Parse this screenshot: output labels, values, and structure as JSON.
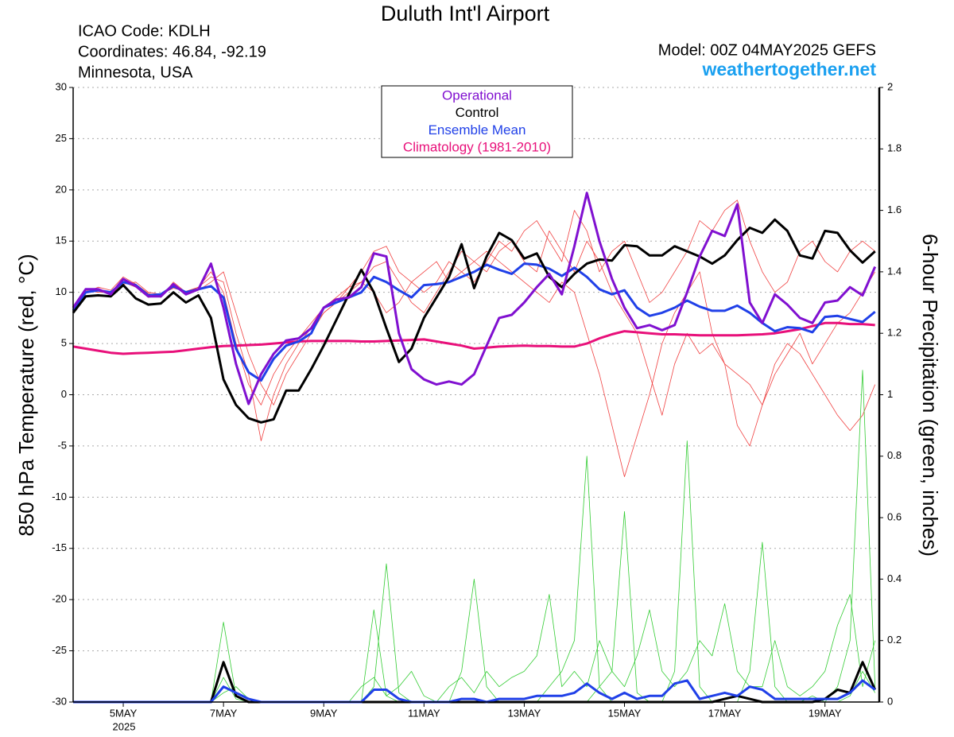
{
  "chart_data": {
    "type": "line",
    "title": "Duluth Int'l Airport",
    "info_left": [
      "ICAO Code: KDLH",
      "Coordinates: 46.84, -92.19",
      "Minnesota, USA"
    ],
    "model": "Model: 00Z 04MAY2025 GEFS",
    "site": "weathertogether.net",
    "ylabel": "850 hPa Temperature (red, °C)",
    "y2label": "6-hour Precipitation (green, inches)",
    "year_label": "2025",
    "x": [
      0,
      6,
      12,
      18,
      24,
      30,
      36,
      42,
      48,
      54,
      60,
      66,
      72,
      78,
      84,
      90,
      96,
      102,
      108,
      114,
      120,
      126,
      132,
      138,
      144,
      150,
      156,
      162,
      168,
      174,
      180,
      186,
      192,
      198,
      204,
      210,
      216,
      222,
      228,
      234,
      240,
      246,
      252,
      258,
      264,
      270,
      276,
      282,
      288,
      294,
      300,
      306,
      312,
      318,
      324,
      330,
      336,
      342,
      348,
      354,
      360,
      366,
      372,
      378,
      384
    ],
    "xlim": [
      0,
      386
    ],
    "xticks": [
      {
        "value": 24,
        "label": "5MAY"
      },
      {
        "value": 72,
        "label": "7MAY"
      },
      {
        "value": 120,
        "label": "9MAY"
      },
      {
        "value": 168,
        "label": "11MAY"
      },
      {
        "value": 216,
        "label": "13MAY"
      },
      {
        "value": 264,
        "label": "15MAY"
      },
      {
        "value": 312,
        "label": "17MAY"
      },
      {
        "value": 360,
        "label": "19MAY"
      }
    ],
    "ylim": [
      -30,
      30
    ],
    "yticks": [
      30,
      25,
      20,
      15,
      10,
      5,
      0,
      -5,
      -10,
      -15,
      -20,
      -25,
      -30
    ],
    "y2lim": [
      0,
      2
    ],
    "y2ticks": [
      0,
      0.2,
      0.4,
      0.6,
      0.8,
      1,
      1.2,
      1.4,
      1.6,
      1.8,
      2
    ],
    "grid": true,
    "series": [
      {
        "color": "#f04040",
        "values": [
          8,
          10,
          10.5,
          10.2,
          11.5,
          10.8,
          9.9,
          9.5,
          11,
          10,
          10.5,
          12,
          10,
          5,
          1,
          -1,
          2,
          4,
          5.5,
          7,
          8.5,
          9.5,
          10.5,
          11,
          12.5,
          13,
          11,
          9,
          8,
          10,
          12,
          14,
          13,
          12,
          14,
          15,
          13,
          12,
          16,
          14,
          12,
          15,
          13,
          10,
          8,
          6,
          2,
          -2,
          3,
          6,
          4,
          5,
          3,
          2,
          1,
          -1,
          3,
          5,
          4,
          2,
          0,
          -2,
          -3.5,
          -2,
          1
        ]
      },
      {
        "color": "#f04040",
        "values": [
          8,
          10.2,
          10,
          10,
          11,
          10.5,
          9.5,
          9.7,
          10.5,
          10,
          10.2,
          11,
          12,
          8,
          4,
          1,
          -1,
          2,
          4,
          6,
          8,
          9,
          10.5,
          12,
          14,
          14.5,
          12,
          11,
          10,
          11,
          13,
          12,
          11,
          13,
          15,
          14,
          16,
          17,
          15,
          13,
          18,
          16,
          12,
          14,
          15,
          12,
          9,
          10,
          12,
          14,
          17,
          16,
          18,
          19,
          15,
          12,
          10,
          11,
          14,
          15,
          13,
          12,
          14,
          15,
          14
        ]
      },
      {
        "color": "#f04040",
        "values": [
          8,
          10,
          10.3,
          9.8,
          10.8,
          11,
          10,
          9.8,
          10.4,
          10.1,
          10.5,
          11.5,
          11,
          6,
          2,
          -4.5,
          0,
          3,
          5,
          6.5,
          8,
          9,
          10,
          11,
          10,
          8,
          9,
          11,
          12,
          13,
          11,
          12,
          13,
          14,
          13,
          12,
          11,
          10,
          9,
          11,
          10,
          6,
          2,
          -3,
          -8,
          -4,
          0,
          5,
          8,
          10,
          12,
          6,
          3,
          -3,
          -5,
          -1,
          2,
          4,
          6,
          3,
          5,
          7,
          8,
          10,
          12
        ]
      },
      {
        "color": "#33cc33",
        "axis": "y2",
        "values": [
          0,
          0,
          0,
          0,
          0,
          0,
          0,
          0,
          0,
          0,
          0,
          0,
          0.26,
          0.02,
          0,
          0,
          0,
          0,
          0,
          0,
          0,
          0,
          0,
          0,
          0.05,
          0.45,
          0.03,
          0,
          0,
          0,
          0,
          0,
          0,
          0,
          0,
          0,
          0,
          0,
          0.05,
          0.1,
          0.2,
          0.8,
          0.05,
          0,
          0,
          0,
          0,
          0,
          0,
          0,
          0,
          0,
          0,
          0,
          0.1,
          0.52,
          0.05,
          0,
          0,
          0,
          0,
          0,
          0.02,
          0.1,
          0.03
        ]
      },
      {
        "color": "#33cc33",
        "axis": "y2",
        "values": [
          0,
          0,
          0,
          0,
          0,
          0,
          0,
          0,
          0,
          0,
          0,
          0,
          0.08,
          0.01,
          0,
          0,
          0,
          0,
          0,
          0,
          0,
          0,
          0,
          0,
          0.3,
          0.02,
          0,
          0,
          0,
          0,
          0,
          0.1,
          0.4,
          0.05,
          0,
          0,
          0,
          0,
          0,
          0,
          0,
          0,
          0.05,
          0.1,
          0.62,
          0.03,
          0,
          0,
          0.1,
          0.85,
          0.05,
          0,
          0,
          0,
          0,
          0,
          0,
          0,
          0,
          0.02,
          0,
          0.05,
          0.2,
          1.08,
          0.05
        ]
      },
      {
        "color": "#33cc33",
        "axis": "y2",
        "values": [
          0,
          0,
          0,
          0,
          0,
          0,
          0,
          0,
          0,
          0,
          0,
          0,
          0.03,
          0.05,
          0.01,
          0,
          0,
          0,
          0,
          0,
          0,
          0,
          0,
          0.05,
          0.08,
          0.02,
          0.05,
          0.1,
          0.02,
          0,
          0.05,
          0.08,
          0.03,
          0.1,
          0.05,
          0.08,
          0.1,
          0.15,
          0.35,
          0.05,
          0.1,
          0.05,
          0.2,
          0.1,
          0.05,
          0.15,
          0.3,
          0.1,
          0.05,
          0.1,
          0.2,
          0.15,
          0.32,
          0.1,
          0.05,
          0.05,
          0.2,
          0.05,
          0.02,
          0.05,
          0.1,
          0.25,
          0.35,
          0.05,
          0.2
        ]
      },
      {
        "color": "#000000",
        "axis": "y2",
        "values": [
          0,
          0,
          0,
          0,
          0,
          0,
          0,
          0,
          0,
          0,
          0,
          0,
          0.13,
          0.02,
          0,
          0,
          0,
          0,
          0,
          0,
          0,
          0,
          0,
          0,
          0,
          0,
          0,
          0,
          0,
          0,
          0,
          0,
          0,
          0,
          0,
          0,
          0,
          0,
          0,
          0,
          0,
          0,
          0,
          0,
          0,
          0,
          0,
          0,
          0,
          0,
          0,
          0,
          0.01,
          0.02,
          0.01,
          0,
          0,
          0,
          0,
          0,
          0.01,
          0.04,
          0.03,
          0.13,
          0.04
        ]
      },
      {
        "color": "#2040e8",
        "axis": "y2",
        "values": [
          0,
          0,
          0,
          0,
          0,
          0,
          0,
          0,
          0,
          0,
          0,
          0,
          0.05,
          0.03,
          0.01,
          0,
          0,
          0,
          0,
          0,
          0,
          0,
          0,
          0,
          0.04,
          0.04,
          0.01,
          0,
          0,
          0,
          0,
          0.01,
          0.01,
          0,
          0.01,
          0.01,
          0.01,
          0.02,
          0.02,
          0.02,
          0.03,
          0.06,
          0.03,
          0.01,
          0.03,
          0.01,
          0.02,
          0.02,
          0.06,
          0.07,
          0.01,
          0.02,
          0.03,
          0.02,
          0.05,
          0.04,
          0.01,
          0.01,
          0.01,
          0.01,
          0.01,
          0.01,
          0.03,
          0.07,
          0.04
        ]
      },
      {
        "name": "Climatology (1981-2010)",
        "color": "#e8107a",
        "values": [
          4.7,
          4.5,
          4.3,
          4.1,
          4.0,
          4.05,
          4.1,
          4.15,
          4.2,
          4.35,
          4.5,
          4.65,
          4.75,
          4.8,
          4.85,
          4.9,
          5.0,
          5.1,
          5.2,
          5.25,
          5.25,
          5.25,
          5.25,
          5.2,
          5.2,
          5.25,
          5.3,
          5.35,
          5.4,
          5.2,
          5.0,
          4.8,
          4.5,
          4.6,
          4.7,
          4.75,
          4.8,
          4.75,
          4.75,
          4.7,
          4.7,
          5.0,
          5.5,
          5.9,
          6.2,
          6.1,
          6.0,
          5.9,
          5.9,
          5.85,
          5.8,
          5.8,
          5.8,
          5.8,
          5.85,
          5.9,
          6.0,
          6.2,
          6.4,
          6.7,
          7.0,
          7.0,
          6.9,
          6.9,
          6.8
        ]
      },
      {
        "name": "Ensemble Mean",
        "color": "#2040e8",
        "values": [
          8.2,
          10,
          10.2,
          10,
          11,
          10.7,
          9.7,
          9.8,
          10.6,
          10,
          10.3,
          10.6,
          9.5,
          4.5,
          2.2,
          1.4,
          3.5,
          4.8,
          5.2,
          6,
          8.5,
          9,
          9.5,
          10,
          11.5,
          11,
          10.2,
          9.5,
          10.7,
          10.8,
          11,
          11.5,
          12,
          12.7,
          12.2,
          11.8,
          12.8,
          12.7,
          12.3,
          11.6,
          12.4,
          11.5,
          10.3,
          9.8,
          10.2,
          8.5,
          7.7,
          8,
          8.5,
          9.2,
          8.6,
          8.2,
          8.2,
          8.7,
          8,
          7,
          6.2,
          6.6,
          6.5,
          6.1,
          7.6,
          7.7,
          7.4,
          7.1,
          8.1
        ]
      },
      {
        "name": "Control",
        "color": "#000000",
        "values": [
          8,
          9.6,
          9.7,
          9.6,
          10.7,
          9.4,
          8.8,
          8.9,
          10.0,
          9.0,
          9.7,
          7.5,
          1.5,
          -1,
          -2.3,
          -2.7,
          -2.4,
          0.4,
          0.4,
          2.5,
          4.8,
          7.3,
          9.8,
          12.2,
          10,
          6.5,
          3.2,
          4.5,
          7.5,
          9.5,
          11.5,
          14.7,
          10.4,
          13.5,
          15.8,
          15.1,
          13.3,
          13.8,
          11.5,
          10.5,
          11.8,
          12.8,
          13.2,
          13.1,
          14.6,
          14.5,
          13.6,
          13.6,
          14.5,
          14.0,
          13.5,
          12.8,
          13.6,
          15.1,
          16.3,
          15.8,
          17.1,
          16,
          13.6,
          13.3,
          16,
          15.8,
          14.1,
          12.9,
          14.0
        ]
      },
      {
        "name": "Operational",
        "color": "#8010d0",
        "values": [
          8.5,
          10.3,
          10.3,
          9.8,
          11.3,
          10.6,
          9.6,
          9.6,
          10.8,
          9.8,
          10.3,
          12.8,
          8.5,
          3,
          -0.9,
          2,
          4,
          5.3,
          5.5,
          6.5,
          8.5,
          9.3,
          9.5,
          10.5,
          13.8,
          13.5,
          6,
          2.5,
          1.5,
          1,
          1.3,
          1,
          2,
          4.8,
          7.5,
          7.8,
          9,
          10.5,
          11.8,
          9.8,
          14.5,
          19.7,
          15,
          11.3,
          8.5,
          6.5,
          6.8,
          6.3,
          6.8,
          10,
          13.5,
          16,
          15.5,
          18.6,
          9,
          7,
          9.8,
          8.8,
          7.5,
          7,
          9,
          9.2,
          10.5,
          9.7,
          12.5
        ]
      }
    ]
  }
}
